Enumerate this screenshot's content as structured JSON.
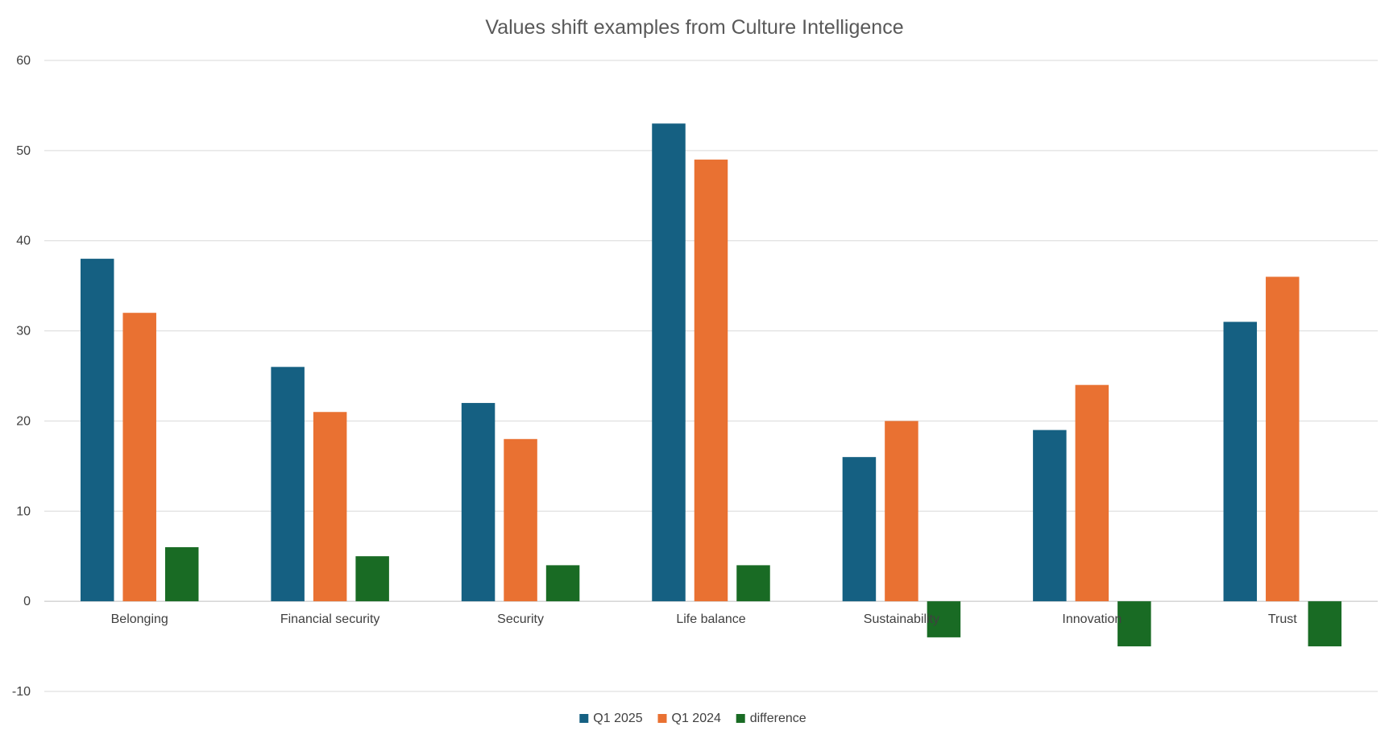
{
  "chart_data": {
    "type": "bar",
    "title": "Values shift examples from Culture Intelligence",
    "xlabel": "",
    "ylabel": "",
    "ylim": [
      -10,
      60
    ],
    "yticks": [
      -10,
      0,
      10,
      20,
      30,
      40,
      50,
      60
    ],
    "grid": true,
    "legend_position": "bottom",
    "categories": [
      "Belonging",
      "Financial security",
      "Security",
      "Life balance",
      "Sustainability",
      "Innovation",
      "Trust"
    ],
    "series": [
      {
        "name": "Q1 2025",
        "color": "#156082",
        "values": [
          38,
          26,
          22,
          53,
          16,
          19,
          31
        ]
      },
      {
        "name": "Q1 2024",
        "color": "#e97132",
        "values": [
          32,
          21,
          18,
          49,
          20,
          24,
          36
        ]
      },
      {
        "name": "difference",
        "color": "#196b24",
        "values": [
          6,
          5,
          4,
          4,
          -4,
          -5,
          -5
        ]
      }
    ]
  }
}
